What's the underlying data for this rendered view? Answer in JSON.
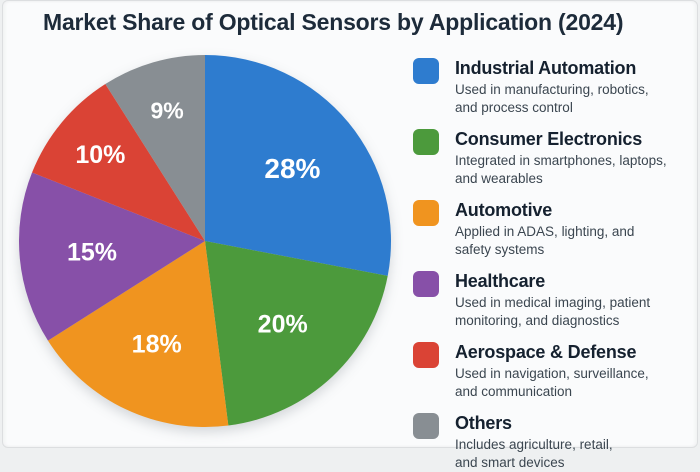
{
  "title": "Market Share of Optical Sensors by Application (2024)",
  "chart_data": {
    "type": "pie",
    "title": "Market Share of Optical Sensors by Application (2024)",
    "start_angle_deg": 0,
    "direction": "clockwise",
    "legend_position": "right",
    "total": 100,
    "segments": [
      {
        "label": "Industrial Automation",
        "value": 28,
        "pct_label": "28%",
        "color": "#2e7ccf",
        "description": "Used in manufacturing, robotics, and process control",
        "desc_lines": [
          "Used in manufacturing, robotics,",
          "and process control"
        ]
      },
      {
        "label": "Consumer Electronics",
        "value": 20,
        "pct_label": "20%",
        "color": "#4c9a3c",
        "description": "Integrated in smartphones, laptops, and wearables",
        "desc_lines": [
          "Integrated in smartphones, laptops,",
          "and wearables"
        ]
      },
      {
        "label": "Automotive",
        "value": 18,
        "pct_label": "18%",
        "color": "#f0941f",
        "description": "Applied in ADAS, lighting, and safety systems",
        "desc_lines": [
          "Applied in ADAS, lighting, and",
          "safety systems"
        ]
      },
      {
        "label": "Healthcare",
        "value": 15,
        "pct_label": "15%",
        "color": "#8750a8",
        "description": "Used in medical imaging, patient monitoring, and diagnostics",
        "desc_lines": [
          "Used in medical imaging, patient",
          "monitoring, and diagnostics"
        ]
      },
      {
        "label": "Aerospace & Defense",
        "value": 10,
        "pct_label": "10%",
        "color": "#da4335",
        "description": "Used in navigation, surveillance, and communication",
        "desc_lines": [
          "Used in navigation, surveillance,",
          "and communication"
        ]
      },
      {
        "label": "Others",
        "value": 9,
        "pct_label": "9%",
        "color": "#888e93",
        "description": "Includes agriculture, retail, and smart devices",
        "desc_lines": [
          "Includes agriculture, retail,",
          "and smart devices"
        ]
      }
    ]
  }
}
